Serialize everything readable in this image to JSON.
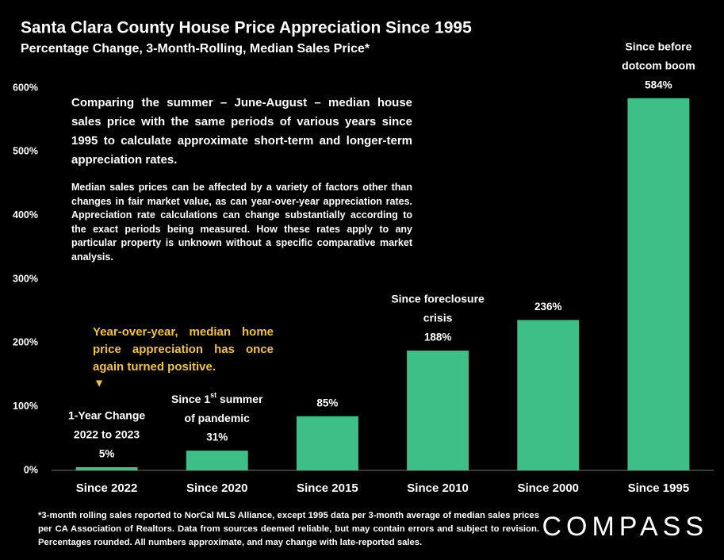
{
  "chart_data": {
    "type": "bar",
    "title": "Santa Clara County House Price Appreciation Since 1995",
    "subtitle": "Percentage Change, 3-Month-Rolling, Median Sales Price*",
    "categories": [
      "Since 2022",
      "Since 2020",
      "Since 2015",
      "Since 2010",
      "Since 2000",
      "Since 1995"
    ],
    "values": [
      5,
      31,
      85,
      188,
      236,
      584
    ],
    "value_labels": [
      "5%",
      "31%",
      "85%",
      "188%",
      "236%",
      "584%"
    ],
    "bar_notes": [
      [
        "1-Year Change",
        "2022 to 2023"
      ],
      [
        [
          "Since 1",
          "st",
          " summer"
        ],
        "of pandemic"
      ],
      null,
      [
        "Since foreclosure",
        "crisis"
      ],
      null,
      [
        "Since before",
        "dotcom boom"
      ]
    ],
    "color": "#3ebf87",
    "ylim": [
      0,
      600
    ],
    "yticks": [
      {
        "value": 0,
        "label": "0%"
      },
      {
        "value": 100,
        "label": "100%"
      },
      {
        "value": 200,
        "label": "200%"
      },
      {
        "value": 300,
        "label": "300%"
      },
      {
        "value": 400,
        "label": "400%"
      },
      {
        "value": 500,
        "label": "500%"
      },
      {
        "value": 600,
        "label": "600%"
      }
    ],
    "grid": false,
    "intro": "Comparing the summer – June-August – median house sales price with the same periods of various years since 1995 to calculate approximate short-term and longer-term appreciation rates.",
    "caveat": "Median sales prices can be affected by a variety of factors other than changes in fair market value, as can year-over-year appreciation rates. Appreciation rate calculations can change substantially according to the exact periods being measured. How these rates apply to any particular property is unknown without a specific comparative market analysis.",
    "callout": "Year-over-year, median home price appreciation has once again turned positive.",
    "footnote": "*3-month rolling sales reported to NorCal MLS Alliance, except 1995 data per 3-month average of median sales prices per CA Association of Realtors. Data from sources deemed reliable, but may contain errors and subject to revision. Percentages rounded. All numbers approximate, and may change with late-reported sales.",
    "brand": "COMPASS"
  }
}
